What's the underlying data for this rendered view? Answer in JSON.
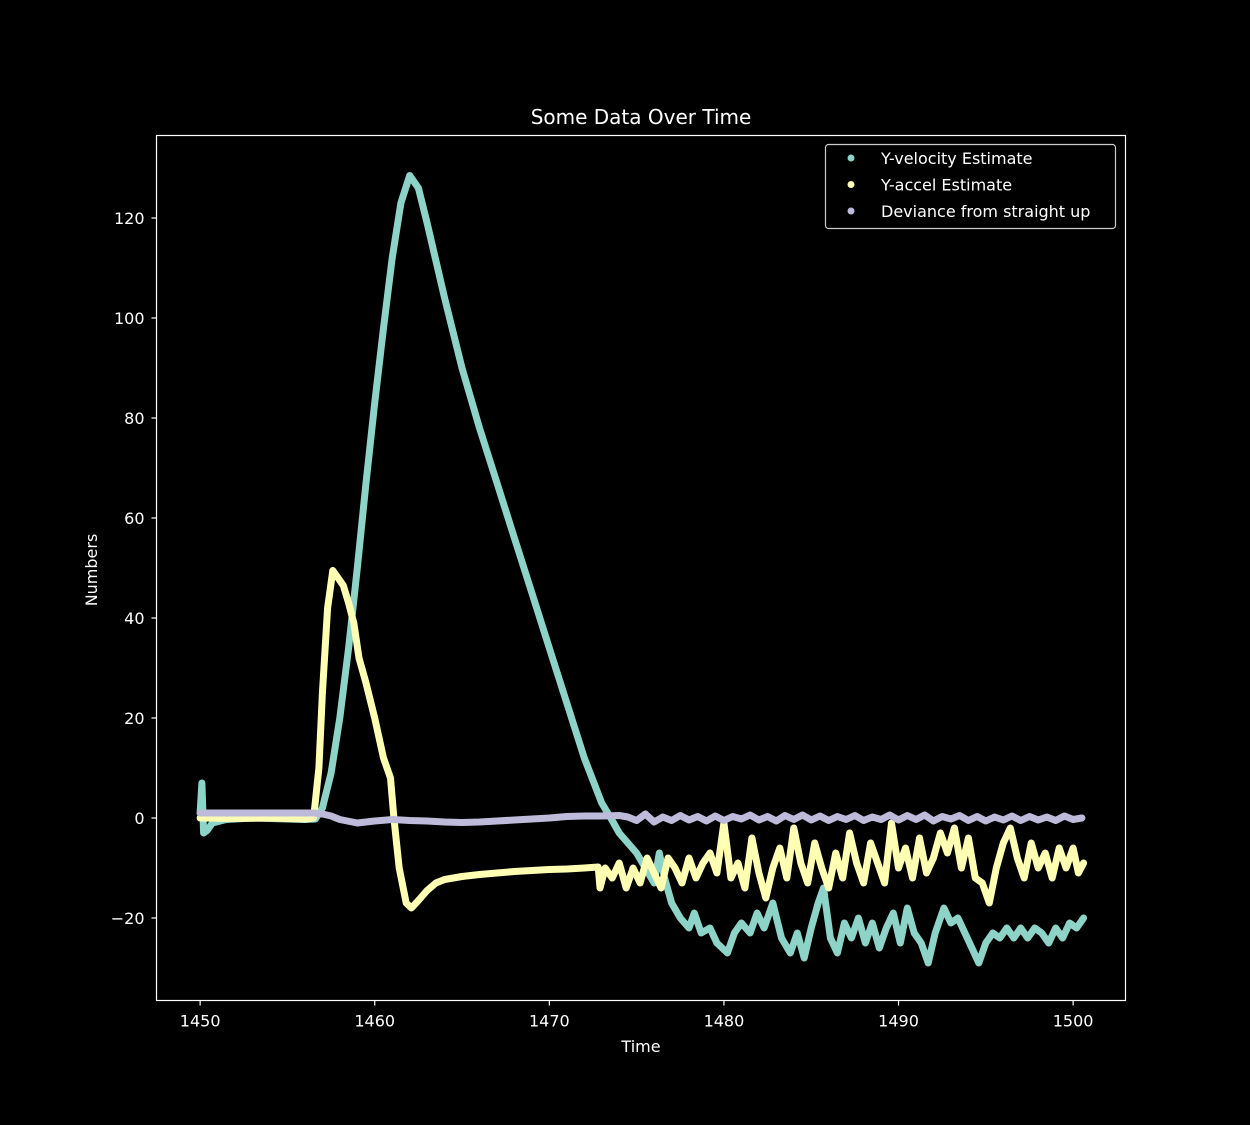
{
  "chart_data": {
    "type": "scatter",
    "title": "Some Data Over Time",
    "xlabel": "Time",
    "ylabel": "Numbers",
    "xlim": [
      1447.5,
      1503.0
    ],
    "ylim": [
      -36.5,
      136.5
    ],
    "xticks": [
      1450,
      1460,
      1470,
      1480,
      1490,
      1500
    ],
    "yticks": [
      -20,
      0,
      20,
      40,
      60,
      80,
      100,
      120
    ],
    "ytick_labels": [
      "−20",
      "0",
      "20",
      "40",
      "60",
      "80",
      "100",
      "120"
    ],
    "grid": false,
    "legend_position": "top-right",
    "series": [
      {
        "name": "Y-velocity Estimate",
        "color": "#8dd3c7",
        "points": [
          [
            1450.0,
            1.0
          ],
          [
            1450.1,
            7.0
          ],
          [
            1450.2,
            -3.0
          ],
          [
            1450.4,
            -2.5
          ],
          [
            1450.7,
            -1.0
          ],
          [
            1451.5,
            -0.3
          ],
          [
            1453,
            0.0
          ],
          [
            1455,
            -0.2
          ],
          [
            1456,
            -0.3
          ],
          [
            1456.6,
            -0.2
          ],
          [
            1457.0,
            2.0
          ],
          [
            1457.5,
            9.0
          ],
          [
            1458.0,
            20.0
          ],
          [
            1458.5,
            34.0
          ],
          [
            1459.0,
            50.0
          ],
          [
            1459.5,
            67.0
          ],
          [
            1460.0,
            83.0
          ],
          [
            1460.5,
            98.0
          ],
          [
            1461.0,
            112.0
          ],
          [
            1461.5,
            123.0
          ],
          [
            1462.0,
            128.5
          ],
          [
            1462.5,
            126.0
          ],
          [
            1463.0,
            119.0
          ],
          [
            1464.0,
            104.0
          ],
          [
            1465.0,
            90.0
          ],
          [
            1466.0,
            78.0
          ],
          [
            1467.0,
            67.0
          ],
          [
            1468.0,
            56.0
          ],
          [
            1469.0,
            45.0
          ],
          [
            1470.0,
            34.0
          ],
          [
            1471.0,
            23.0
          ],
          [
            1472.0,
            12.0
          ],
          [
            1473.0,
            3.0
          ],
          [
            1473.6,
            -0.5
          ],
          [
            1474.0,
            -3.0
          ],
          [
            1474.5,
            -5.0
          ],
          [
            1475.0,
            -7.0
          ],
          [
            1475.5,
            -10.0
          ],
          [
            1476.0,
            -13.0
          ],
          [
            1476.3,
            -7.0
          ],
          [
            1476.6,
            -12.0
          ],
          [
            1477.0,
            -17.0
          ],
          [
            1477.5,
            -20.0
          ],
          [
            1478.0,
            -22.0
          ],
          [
            1478.3,
            -19.0
          ],
          [
            1478.7,
            -23.0
          ],
          [
            1479.2,
            -22.0
          ],
          [
            1479.6,
            -25.0
          ],
          [
            1480.2,
            -27.0
          ],
          [
            1480.6,
            -23.0
          ],
          [
            1481.0,
            -21.0
          ],
          [
            1481.5,
            -23.0
          ],
          [
            1481.9,
            -19.0
          ],
          [
            1482.3,
            -22.0
          ],
          [
            1482.8,
            -17.0
          ],
          [
            1483.3,
            -24.0
          ],
          [
            1483.8,
            -27.0
          ],
          [
            1484.2,
            -23.0
          ],
          [
            1484.6,
            -28.0
          ],
          [
            1485.0,
            -22.0
          ],
          [
            1485.4,
            -17.0
          ],
          [
            1485.7,
            -14.0
          ],
          [
            1486.1,
            -24.0
          ],
          [
            1486.5,
            -27.0
          ],
          [
            1486.9,
            -21.0
          ],
          [
            1487.3,
            -24.0
          ],
          [
            1487.7,
            -20.0
          ],
          [
            1488.1,
            -25.0
          ],
          [
            1488.5,
            -21.0
          ],
          [
            1488.9,
            -26.0
          ],
          [
            1489.3,
            -22.0
          ],
          [
            1489.7,
            -19.0
          ],
          [
            1490.1,
            -25.0
          ],
          [
            1490.5,
            -18.0
          ],
          [
            1490.9,
            -23.0
          ],
          [
            1491.3,
            -25.0
          ],
          [
            1491.7,
            -29.0
          ],
          [
            1492.1,
            -23.0
          ],
          [
            1492.6,
            -18.0
          ],
          [
            1493.0,
            -21.0
          ],
          [
            1493.4,
            -20.0
          ],
          [
            1493.8,
            -23.0
          ],
          [
            1494.2,
            -26.0
          ],
          [
            1494.6,
            -29.0
          ],
          [
            1495.0,
            -25.0
          ],
          [
            1495.4,
            -23.0
          ],
          [
            1495.8,
            -24.0
          ],
          [
            1496.2,
            -22.0
          ],
          [
            1496.6,
            -24.0
          ],
          [
            1497.0,
            -22.0
          ],
          [
            1497.4,
            -24.0
          ],
          [
            1497.8,
            -22.0
          ],
          [
            1498.2,
            -23.0
          ],
          [
            1498.6,
            -25.0
          ],
          [
            1499.0,
            -22.0
          ],
          [
            1499.4,
            -24.0
          ],
          [
            1499.8,
            -21.0
          ],
          [
            1500.2,
            -22.0
          ],
          [
            1500.6,
            -20.0
          ]
        ]
      },
      {
        "name": "Y-accel Estimate",
        "color": "#ffffb3",
        "points": [
          [
            1450.0,
            0.0
          ],
          [
            1452,
            -0.1
          ],
          [
            1454,
            0.0
          ],
          [
            1456,
            -0.2
          ],
          [
            1456.5,
            0.0
          ],
          [
            1456.8,
            10.0
          ],
          [
            1457.0,
            25.0
          ],
          [
            1457.3,
            42.0
          ],
          [
            1457.6,
            49.5
          ],
          [
            1457.9,
            48.0
          ],
          [
            1458.2,
            46.5
          ],
          [
            1458.5,
            43.0
          ],
          [
            1458.8,
            39.0
          ],
          [
            1459.1,
            32.0
          ],
          [
            1459.5,
            27.0
          ],
          [
            1460.0,
            20.0
          ],
          [
            1460.5,
            12.0
          ],
          [
            1460.9,
            8.0
          ],
          [
            1461.1,
            0.0
          ],
          [
            1461.4,
            -10.0
          ],
          [
            1461.8,
            -17.0
          ],
          [
            1462.1,
            -18.0
          ],
          [
            1462.5,
            -16.5
          ],
          [
            1463.0,
            -14.5
          ],
          [
            1463.5,
            -13.0
          ],
          [
            1464.0,
            -12.3
          ],
          [
            1465.0,
            -11.7
          ],
          [
            1466.0,
            -11.3
          ],
          [
            1467.0,
            -11.0
          ],
          [
            1468.0,
            -10.7
          ],
          [
            1469.0,
            -10.5
          ],
          [
            1470.0,
            -10.3
          ],
          [
            1471.0,
            -10.2
          ],
          [
            1472.0,
            -10.0
          ],
          [
            1472.8,
            -9.8
          ],
          [
            1472.9,
            -14.0
          ],
          [
            1473.2,
            -10.0
          ],
          [
            1473.6,
            -12.0
          ],
          [
            1474.0,
            -9.0
          ],
          [
            1474.4,
            -14.0
          ],
          [
            1474.8,
            -10.0
          ],
          [
            1475.2,
            -13.0
          ],
          [
            1475.6,
            -8.0
          ],
          [
            1476.0,
            -11.0
          ],
          [
            1476.4,
            -14.0
          ],
          [
            1476.8,
            -8.0
          ],
          [
            1477.2,
            -10.0
          ],
          [
            1477.6,
            -13.0
          ],
          [
            1478.0,
            -8.0
          ],
          [
            1478.4,
            -12.0
          ],
          [
            1478.8,
            -9.0
          ],
          [
            1479.2,
            -7.0
          ],
          [
            1479.6,
            -11.0
          ],
          [
            1480.0,
            -1.0
          ],
          [
            1480.4,
            -12.0
          ],
          [
            1480.8,
            -9.0
          ],
          [
            1481.2,
            -14.0
          ],
          [
            1481.6,
            -4.0
          ],
          [
            1482.0,
            -11.0
          ],
          [
            1482.4,
            -16.0
          ],
          [
            1482.8,
            -10.0
          ],
          [
            1483.2,
            -6.0
          ],
          [
            1483.6,
            -12.0
          ],
          [
            1484.0,
            -2.0
          ],
          [
            1484.4,
            -9.0
          ],
          [
            1484.8,
            -13.0
          ],
          [
            1485.2,
            -5.0
          ],
          [
            1485.6,
            -10.0
          ],
          [
            1486.0,
            -14.0
          ],
          [
            1486.4,
            -7.0
          ],
          [
            1486.8,
            -12.0
          ],
          [
            1487.2,
            -3.0
          ],
          [
            1487.6,
            -9.0
          ],
          [
            1488.0,
            -13.0
          ],
          [
            1488.4,
            -5.0
          ],
          [
            1488.8,
            -9.0
          ],
          [
            1489.2,
            -13.0
          ],
          [
            1489.6,
            -1.0
          ],
          [
            1490.0,
            -10.0
          ],
          [
            1490.4,
            -6.0
          ],
          [
            1490.8,
            -12.0
          ],
          [
            1491.2,
            -4.0
          ],
          [
            1491.6,
            -11.0
          ],
          [
            1492.0,
            -8.0
          ],
          [
            1492.4,
            -3.0
          ],
          [
            1492.8,
            -7.0
          ],
          [
            1493.2,
            -2.0
          ],
          [
            1493.6,
            -10.0
          ],
          [
            1494.0,
            -4.0
          ],
          [
            1494.4,
            -12.0
          ],
          [
            1494.8,
            -13.0
          ],
          [
            1495.2,
            -17.0
          ],
          [
            1495.6,
            -10.0
          ],
          [
            1496.0,
            -5.0
          ],
          [
            1496.4,
            -2.0
          ],
          [
            1496.8,
            -8.0
          ],
          [
            1497.2,
            -12.0
          ],
          [
            1497.6,
            -5.0
          ],
          [
            1498.0,
            -10.0
          ],
          [
            1498.4,
            -7.0
          ],
          [
            1498.8,
            -12.0
          ],
          [
            1499.2,
            -6.0
          ],
          [
            1499.6,
            -10.0
          ],
          [
            1500.0,
            -6.0
          ],
          [
            1500.3,
            -11.0
          ],
          [
            1500.6,
            -9.0
          ]
        ]
      },
      {
        "name": "Deviance from straight up",
        "color": "#bebada",
        "points": [
          [
            1450.0,
            1.0
          ],
          [
            1452,
            1.0
          ],
          [
            1454,
            1.0
          ],
          [
            1456,
            1.0
          ],
          [
            1456.5,
            1.0
          ],
          [
            1457.0,
            0.8
          ],
          [
            1457.5,
            0.4
          ],
          [
            1458.0,
            -0.3
          ],
          [
            1459.0,
            -1.0
          ],
          [
            1460.0,
            -0.6
          ],
          [
            1461.0,
            -0.3
          ],
          [
            1462.0,
            -0.5
          ],
          [
            1463.0,
            -0.6
          ],
          [
            1464.0,
            -0.8
          ],
          [
            1465.0,
            -0.9
          ],
          [
            1466.0,
            -0.8
          ],
          [
            1467.0,
            -0.6
          ],
          [
            1468.0,
            -0.4
          ],
          [
            1469.0,
            -0.2
          ],
          [
            1470.0,
            0.0
          ],
          [
            1471.0,
            0.3
          ],
          [
            1472.0,
            0.4
          ],
          [
            1473.0,
            0.4
          ],
          [
            1474.0,
            0.5
          ],
          [
            1474.5,
            0.2
          ],
          [
            1475.0,
            -0.5
          ],
          [
            1475.5,
            0.8
          ],
          [
            1476.0,
            -0.8
          ],
          [
            1476.5,
            0.2
          ],
          [
            1477.0,
            -0.5
          ],
          [
            1477.5,
            0.5
          ],
          [
            1478.0,
            -0.4
          ],
          [
            1478.5,
            0.3
          ],
          [
            1479.0,
            -0.6
          ],
          [
            1479.5,
            0.4
          ],
          [
            1480.0,
            -0.5
          ],
          [
            1480.5,
            0.3
          ],
          [
            1481.0,
            -0.2
          ],
          [
            1481.5,
            0.6
          ],
          [
            1482.0,
            -0.4
          ],
          [
            1482.5,
            0.3
          ],
          [
            1483.0,
            -0.6
          ],
          [
            1483.5,
            0.5
          ],
          [
            1484.0,
            -0.3
          ],
          [
            1484.5,
            0.6
          ],
          [
            1485.0,
            -0.4
          ],
          [
            1485.5,
            0.4
          ],
          [
            1486.0,
            -0.5
          ],
          [
            1486.5,
            0.3
          ],
          [
            1487.0,
            -0.3
          ],
          [
            1487.5,
            0.5
          ],
          [
            1488.0,
            -0.5
          ],
          [
            1488.5,
            0.2
          ],
          [
            1489.0,
            -0.3
          ],
          [
            1489.5,
            0.6
          ],
          [
            1490.0,
            -0.4
          ],
          [
            1490.5,
            0.5
          ],
          [
            1491.0,
            -0.3
          ],
          [
            1491.5,
            0.6
          ],
          [
            1492.0,
            -0.6
          ],
          [
            1492.5,
            0.3
          ],
          [
            1493.0,
            -0.2
          ],
          [
            1493.5,
            0.5
          ],
          [
            1494.0,
            -0.5
          ],
          [
            1494.5,
            0.3
          ],
          [
            1495.0,
            -0.6
          ],
          [
            1495.5,
            0.2
          ],
          [
            1496.0,
            -0.4
          ],
          [
            1496.5,
            0.4
          ],
          [
            1497.0,
            -0.5
          ],
          [
            1497.5,
            0.3
          ],
          [
            1498.0,
            -0.4
          ],
          [
            1498.5,
            0.2
          ],
          [
            1499.0,
            -0.5
          ],
          [
            1499.5,
            0.4
          ],
          [
            1500.0,
            -0.3
          ],
          [
            1500.5,
            0.0
          ]
        ]
      }
    ]
  }
}
